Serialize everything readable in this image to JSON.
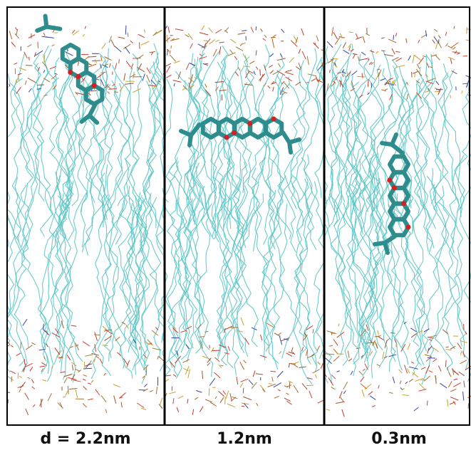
{
  "panels": [
    {
      "label": "d = 2.2nm"
    },
    {
      "label": "1.2nm"
    },
    {
      "label": "0.3nm"
    }
  ]
}
